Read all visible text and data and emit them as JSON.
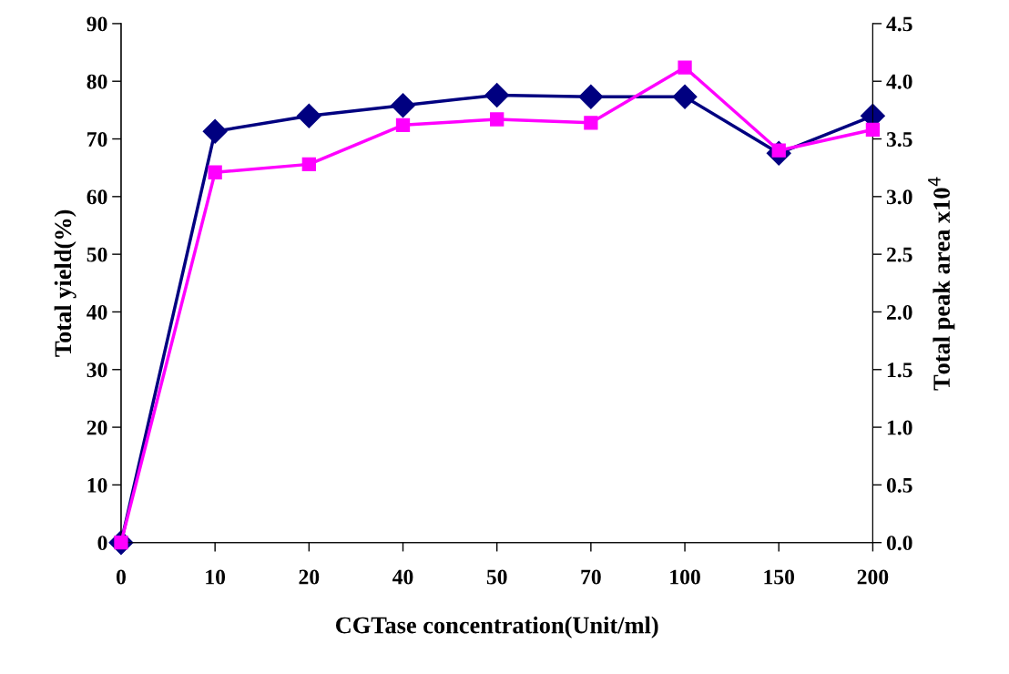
{
  "chart_data": {
    "type": "line",
    "xlabel": "CGTase concentration(Unit/ml)",
    "ylabel": "Total yield(%)",
    "y2label": "Total peak area x10$^{4}$",
    "categories": [
      "0",
      "10",
      "20",
      "40",
      "50",
      "70",
      "100",
      "150",
      "200"
    ],
    "series": [
      {
        "color": "#000080",
        "marker": "diamond",
        "values": [
          0,
          71.3,
          74.0,
          75.8,
          77.6,
          77.3,
          77.3,
          67.5,
          74.0
        ]
      },
      {
        "color": "#ff00ff",
        "marker": "square",
        "axis": "y2",
        "values": [
          0,
          3.21,
          3.28,
          3.62,
          3.67,
          3.64,
          4.12,
          3.4,
          3.58
        ]
      }
    ],
    "ylim": [
      0,
      90
    ],
    "yticks": [
      0,
      10,
      20,
      30,
      40,
      50,
      60,
      70,
      80,
      90
    ],
    "y2lim": [
      0,
      4.5
    ],
    "y2ticks": [
      {
        "value": 0,
        "label": "0.0"
      },
      {
        "value": 0.5,
        "label": "0.5"
      },
      {
        "value": 1,
        "label": "1.0"
      },
      {
        "value": 1.5,
        "label": "1.5"
      },
      {
        "value": 2,
        "label": "2.0"
      },
      {
        "value": 2.5,
        "label": "2.5"
      },
      {
        "value": 3,
        "label": "3.0"
      },
      {
        "value": 3.5,
        "label": "3.5"
      },
      {
        "value": 4,
        "label": "4.0"
      },
      {
        "value": 4.5,
        "label": "4.5"
      }
    ],
    "grid": false,
    "legend": false,
    "line_style": "solid"
  }
}
